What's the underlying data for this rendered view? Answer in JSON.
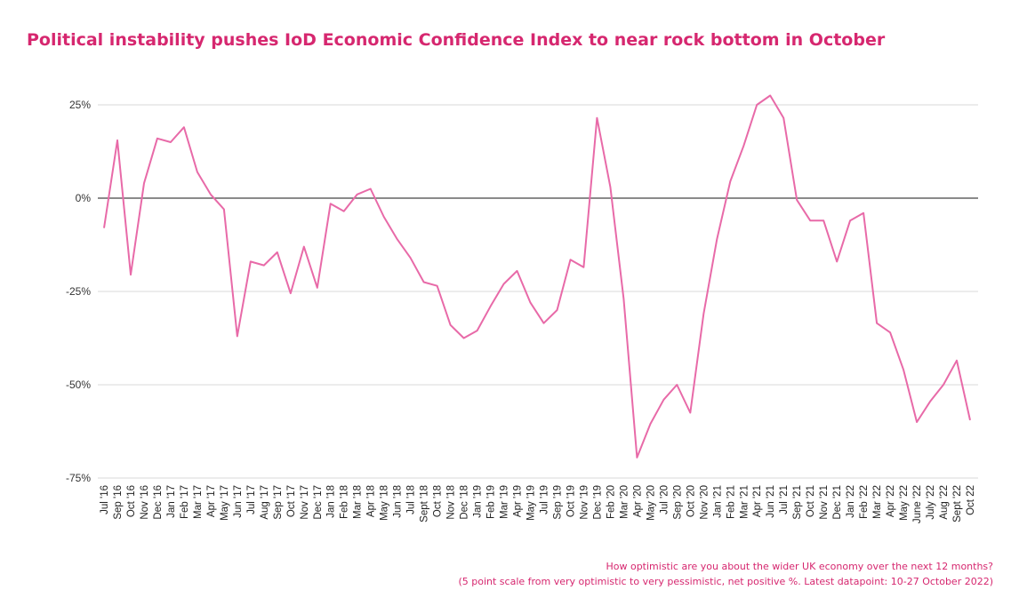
{
  "title": "Political instability pushes IoD Economic Confidence Index to near rock bottom in October",
  "footnote": {
    "line1": "How optimistic are you about the wider UK economy over the next 12 months?",
    "line2": "(5 point scale from very optimistic to very pessimistic, net positive %. Latest datapoint: 10-27 October 2022)"
  },
  "colors": {
    "title": "#d6276f",
    "line": "#e86aa8",
    "grid": "#d9d9d9",
    "zero_line": "#444444"
  },
  "chart_data": {
    "type": "line",
    "title": "Political instability pushes IoD Economic Confidence Index to near rock bottom in October",
    "xlabel": "",
    "ylabel": "",
    "ylim": [
      -75,
      25
    ],
    "y_ticks": [
      25,
      0,
      -25,
      -50,
      -75
    ],
    "y_tick_labels": [
      "25%",
      "0%",
      "-25%",
      "-50%",
      "-75%"
    ],
    "grid": true,
    "x_labels": [
      "Jul '16",
      "Sep '16",
      "Oct '16",
      "Nov '16",
      "Dec '16",
      "Jan '17",
      "Feb '17",
      "Mar '17",
      "Apr '17",
      "May '17",
      "Jun '17",
      "Jul '17",
      "Aug '17",
      "Sep '17",
      "Oct '17",
      "Nov '17",
      "Dec '17",
      "Jan '18",
      "Feb '18",
      "Mar '18",
      "Apr '18",
      "May '18",
      "Jun '18",
      "Jul '18",
      "Sept '18",
      "Oct '18",
      "Nov '18",
      "Dec '18",
      "Jan '19",
      "Feb '19",
      "Mar '19",
      "Apr '19",
      "May '19",
      "Jul '19",
      "Sep '19",
      "Oct '19",
      "Nov '19",
      "Dec '19",
      "Feb '20",
      "Mar '20",
      "Apr '20",
      "May '20",
      "Jul '20",
      "Sep '20",
      "Oct '20",
      "Nov '20",
      "Jan '21",
      "Feb '21",
      "Mar '21",
      "Apr '21",
      "Jun '21",
      "Jul '21",
      "Sep '21",
      "Oct '21",
      "Nov '21",
      "Dec '21",
      "Jan '22",
      "Feb '22",
      "Mar '22",
      "Apr '22",
      "May '22",
      "June '22",
      "July '22",
      "Aug '22",
      "Sept '22",
      "Oct 22"
    ],
    "series": [
      {
        "values": [
          -8,
          15.5,
          -20.5,
          4,
          16,
          15,
          19,
          7,
          1,
          -3,
          -37,
          -17,
          -18,
          -14.5,
          -25.5,
          -13,
          -24,
          -1.5,
          -3.5,
          1,
          2.5,
          -5,
          -11,
          -16,
          -22.5,
          -23.5,
          -34,
          -37.5,
          -35.5,
          -29,
          -23,
          -19.5,
          -28,
          -33.5,
          -30,
          -16.5,
          -18.5,
          21.5,
          3,
          -27,
          -69.5,
          -60.5,
          -54,
          -50,
          -57.5,
          -31,
          -11,
          4.5,
          14,
          25,
          27.5,
          21.5,
          -0.5,
          -6,
          -6,
          -17,
          -6,
          -4,
          -33.5,
          -36,
          -46,
          -60,
          -54.5,
          -50,
          -43.5,
          -59.5
        ]
      }
    ]
  }
}
